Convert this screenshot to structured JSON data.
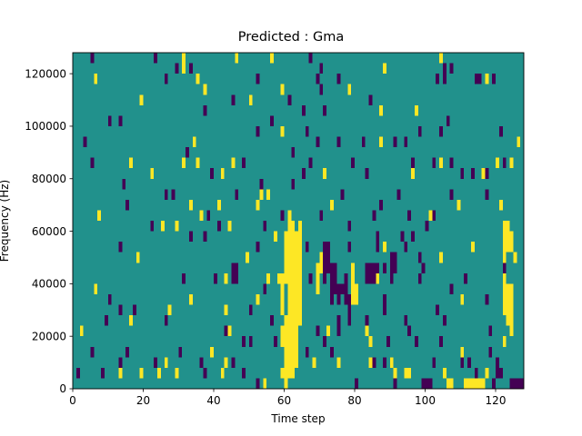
{
  "chart_data": {
    "type": "heatmap",
    "title": "Predicted : Gma",
    "xlabel": "Time step",
    "ylabel": "Frequency (Hz)",
    "xlim": [
      0,
      128
    ],
    "ylim": [
      0,
      128000
    ],
    "x_ticks": [
      0,
      20,
      40,
      60,
      80,
      100,
      120
    ],
    "y_ticks": [
      0,
      20000,
      40000,
      60000,
      80000,
      100000,
      120000
    ],
    "x_tick_labels": [
      "0",
      "20",
      "40",
      "60",
      "80",
      "100",
      "120"
    ],
    "y_tick_labels": [
      "0",
      "20000",
      "40000",
      "60000",
      "80000",
      "100000",
      "120000"
    ],
    "grid": false,
    "colormap": "viridis",
    "colors": {
      "background": "#21918c",
      "low": "#440154",
      "high": "#fde725"
    },
    "cell_height_hz": 4000,
    "high_cells": [
      [
        31,
        120000
      ],
      [
        31,
        124000
      ],
      [
        46,
        124000
      ],
      [
        56,
        124000
      ],
      [
        104,
        124000
      ],
      [
        88,
        120000
      ],
      [
        6,
        116000
      ],
      [
        35,
        116000
      ],
      [
        117,
        116000
      ],
      [
        37,
        112000
      ],
      [
        59,
        112000
      ],
      [
        78,
        112000
      ],
      [
        19,
        108000
      ],
      [
        50,
        108000
      ],
      [
        87,
        104000
      ],
      [
        97,
        104000
      ],
      [
        59,
        96000
      ],
      [
        34,
        92000
      ],
      [
        87,
        92000
      ],
      [
        126,
        92000
      ],
      [
        16,
        84000
      ],
      [
        31,
        84000
      ],
      [
        35,
        84000
      ],
      [
        45,
        84000
      ],
      [
        104,
        84000
      ],
      [
        120,
        84000
      ],
      [
        124,
        84000
      ],
      [
        22,
        80000
      ],
      [
        42,
        80000
      ],
      [
        71,
        80000
      ],
      [
        96,
        80000
      ],
      [
        116,
        80000
      ],
      [
        53,
        72000
      ],
      [
        55,
        72000
      ],
      [
        33,
        68000
      ],
      [
        41,
        68000
      ],
      [
        52,
        68000
      ],
      [
        73,
        68000
      ],
      [
        109,
        68000
      ],
      [
        121,
        68000
      ],
      [
        7,
        64000
      ],
      [
        36,
        64000
      ],
      [
        101,
        64000
      ],
      [
        25,
        60000
      ],
      [
        29,
        60000
      ],
      [
        44,
        60000
      ],
      [
        57,
        56000
      ],
      [
        88,
        52000
      ],
      [
        113,
        52000
      ],
      [
        18,
        48000
      ],
      [
        49,
        48000
      ],
      [
        104,
        48000
      ],
      [
        125,
        48000
      ],
      [
        43,
        40000
      ],
      [
        55,
        40000
      ],
      [
        58,
        40000
      ],
      [
        86,
        40000
      ],
      [
        6,
        36000
      ],
      [
        33,
        32000
      ],
      [
        52,
        32000
      ],
      [
        110,
        32000
      ],
      [
        122,
        32000
      ],
      [
        27,
        28000
      ],
      [
        43,
        28000
      ],
      [
        16,
        24000
      ],
      [
        2,
        20000
      ],
      [
        44,
        20000
      ],
      [
        72,
        20000
      ],
      [
        83,
        20000
      ],
      [
        84,
        16000
      ],
      [
        122,
        16000
      ],
      [
        39,
        12000
      ],
      [
        110,
        12000
      ],
      [
        26,
        8000
      ],
      [
        43,
        8000
      ],
      [
        84,
        8000
      ],
      [
        90,
        8000
      ],
      [
        24,
        4000
      ],
      [
        29,
        4000
      ],
      [
        42,
        4000
      ],
      [
        91,
        4000
      ],
      [
        94,
        4000
      ],
      [
        105,
        4000
      ],
      [
        117,
        4000
      ],
      [
        106,
        0
      ],
      [
        107,
        0
      ],
      [
        111,
        0
      ],
      [
        112,
        0
      ],
      [
        113,
        0
      ],
      [
        114,
        0
      ],
      [
        115,
        0
      ],
      [
        116,
        0
      ],
      [
        13,
        4000
      ],
      [
        19,
        4000
      ],
      [
        54,
        0
      ],
      [
        59,
        4000
      ],
      [
        68,
        8000
      ],
      [
        75,
        8000
      ],
      [
        95,
        4000
      ]
    ],
    "high_runs": [
      [
        60,
        0,
        4000
      ],
      [
        60,
        8000,
        24000
      ],
      [
        61,
        4000,
        64000
      ],
      [
        62,
        4000,
        60000
      ],
      [
        63,
        8000,
        56000
      ],
      [
        64,
        24000,
        60000
      ],
      [
        59,
        28000,
        40000
      ],
      [
        60,
        40000,
        48000
      ],
      [
        60,
        52000,
        56000
      ],
      [
        59,
        16000,
        20000
      ],
      [
        69,
        36000,
        44000
      ],
      [
        70,
        44000,
        48000
      ],
      [
        79,
        32000,
        44000
      ],
      [
        80,
        32000,
        36000
      ],
      [
        122,
        28000,
        40000
      ],
      [
        123,
        24000,
        36000
      ],
      [
        124,
        20000,
        36000
      ],
      [
        122,
        48000,
        60000
      ],
      [
        123,
        52000,
        60000
      ],
      [
        124,
        52000,
        56000
      ]
    ],
    "low_cells": [
      [
        5,
        124000
      ],
      [
        23,
        124000
      ],
      [
        29,
        120000
      ],
      [
        67,
        124000
      ],
      [
        70,
        120000
      ],
      [
        33,
        120000
      ],
      [
        107,
        120000
      ],
      [
        105,
        120000
      ],
      [
        26,
        116000
      ],
      [
        52,
        116000
      ],
      [
        69,
        116000
      ],
      [
        75,
        116000
      ],
      [
        103,
        116000
      ],
      [
        105,
        116000
      ],
      [
        115,
        116000
      ],
      [
        114,
        116000
      ],
      [
        119,
        116000
      ],
      [
        70,
        112000
      ],
      [
        45,
        108000
      ],
      [
        84,
        108000
      ],
      [
        65,
        104000
      ],
      [
        71,
        104000
      ],
      [
        106,
        100000
      ],
      [
        37,
        104000
      ],
      [
        10,
        100000
      ],
      [
        13,
        100000
      ],
      [
        56,
        100000
      ],
      [
        52,
        96000
      ],
      [
        61,
        108000
      ],
      [
        66,
        96000
      ],
      [
        98,
        96000
      ],
      [
        104,
        96000
      ],
      [
        121,
        96000
      ],
      [
        3,
        92000
      ],
      [
        32,
        88000
      ],
      [
        62,
        88000
      ],
      [
        69,
        92000
      ],
      [
        75,
        92000
      ],
      [
        82,
        92000
      ],
      [
        91,
        92000
      ],
      [
        94,
        92000
      ],
      [
        5,
        84000
      ],
      [
        48,
        84000
      ],
      [
        67,
        84000
      ],
      [
        79,
        84000
      ],
      [
        96,
        84000
      ],
      [
        102,
        84000
      ],
      [
        107,
        84000
      ],
      [
        122,
        84000
      ],
      [
        39,
        80000
      ],
      [
        65,
        80000
      ],
      [
        83,
        80000
      ],
      [
        110,
        80000
      ],
      [
        117,
        80000
      ],
      [
        113,
        80000
      ],
      [
        14,
        76000
      ],
      [
        26,
        72000
      ],
      [
        28,
        72000
      ],
      [
        46,
        72000
      ],
      [
        53,
        76000
      ],
      [
        62,
        76000
      ],
      [
        76,
        72000
      ],
      [
        92,
        72000
      ],
      [
        107,
        72000
      ],
      [
        117,
        72000
      ],
      [
        121,
        68000
      ],
      [
        87,
        68000
      ],
      [
        15,
        68000
      ],
      [
        54,
        60000
      ],
      [
        38,
        64000
      ],
      [
        59,
        64000
      ],
      [
        70,
        64000
      ],
      [
        78,
        60000
      ],
      [
        85,
        64000
      ],
      [
        95,
        64000
      ],
      [
        102,
        64000
      ],
      [
        22,
        60000
      ],
      [
        37,
        56000
      ],
      [
        41,
        60000
      ],
      [
        86,
        56000
      ],
      [
        93,
        56000
      ],
      [
        96,
        56000
      ],
      [
        100,
        60000
      ],
      [
        13,
        52000
      ],
      [
        33,
        56000
      ],
      [
        52,
        52000
      ],
      [
        66,
        52000
      ],
      [
        78,
        52000
      ],
      [
        86,
        52000
      ],
      [
        94,
        52000
      ],
      [
        98,
        48000
      ],
      [
        79,
        44000
      ],
      [
        88,
        44000
      ],
      [
        99,
        44000
      ],
      [
        122,
        44000
      ],
      [
        31,
        40000
      ],
      [
        40,
        40000
      ],
      [
        54,
        36000
      ],
      [
        67,
        40000
      ],
      [
        73,
        32000
      ],
      [
        76,
        36000
      ],
      [
        98,
        40000
      ],
      [
        107,
        36000
      ],
      [
        111,
        40000
      ],
      [
        10,
        32000
      ],
      [
        13,
        28000
      ],
      [
        17,
        28000
      ],
      [
        50,
        28000
      ],
      [
        62,
        28000
      ],
      [
        75,
        24000
      ],
      [
        83,
        24000
      ],
      [
        94,
        24000
      ],
      [
        103,
        28000
      ],
      [
        105,
        24000
      ],
      [
        117,
        32000
      ],
      [
        9,
        24000
      ],
      [
        26,
        24000
      ],
      [
        43,
        20000
      ],
      [
        48,
        16000
      ],
      [
        50,
        16000
      ],
      [
        69,
        20000
      ],
      [
        75,
        20000
      ],
      [
        95,
        20000
      ],
      [
        118,
        20000
      ],
      [
        8,
        4000
      ],
      [
        36,
        8000
      ],
      [
        37,
        4000
      ],
      [
        48,
        4000
      ],
      [
        73,
        12000
      ],
      [
        85,
        8000
      ],
      [
        88,
        8000
      ],
      [
        97,
        16000
      ],
      [
        104,
        16000
      ],
      [
        110,
        8000
      ],
      [
        112,
        8000
      ],
      [
        120,
        8000
      ],
      [
        118,
        12000
      ],
      [
        1,
        4000
      ],
      [
        45,
        8000
      ],
      [
        52,
        0
      ],
      [
        80,
        0
      ],
      [
        102,
        8000
      ],
      [
        114,
        4000
      ],
      [
        119,
        0
      ],
      [
        13,
        8000
      ],
      [
        23,
        8000
      ],
      [
        30,
        12000
      ],
      [
        5,
        12000
      ],
      [
        15,
        12000
      ],
      [
        56,
        24000
      ],
      [
        71,
        16000
      ],
      [
        89,
        16000
      ],
      [
        120,
        4000
      ],
      [
        121,
        4000
      ],
      [
        124,
        0
      ],
      [
        125,
        0
      ],
      [
        126,
        0
      ],
      [
        127,
        0
      ],
      [
        91,
        0
      ],
      [
        99,
        0
      ],
      [
        100,
        0
      ],
      [
        101,
        0
      ],
      [
        57,
        16000
      ],
      [
        66,
        12000
      ]
    ],
    "low_runs": [
      [
        45,
        40000,
        44000
      ],
      [
        46,
        40000,
        44000
      ],
      [
        73,
        36000,
        44000
      ],
      [
        74,
        36000,
        44000
      ],
      [
        83,
        40000,
        44000
      ],
      [
        84,
        40000,
        44000
      ],
      [
        85,
        40000,
        44000
      ],
      [
        86,
        40000,
        44000
      ],
      [
        71,
        40000,
        52000
      ],
      [
        72,
        44000,
        52000
      ],
      [
        75,
        32000,
        36000
      ],
      [
        77,
        32000,
        40000
      ],
      [
        78,
        24000,
        32000
      ],
      [
        90,
        40000,
        48000
      ],
      [
        91,
        44000,
        48000
      ],
      [
        88,
        28000,
        32000
      ]
    ]
  }
}
